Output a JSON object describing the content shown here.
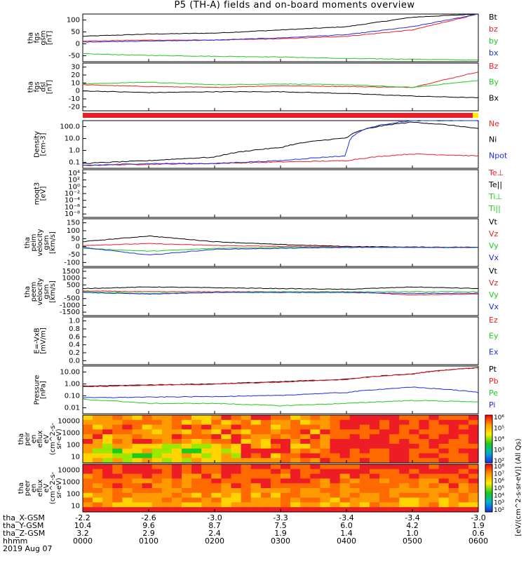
{
  "title": "P5 (TH-A) fields and on-board moments overview",
  "colors": {
    "black": "#000000",
    "red": "#ee1c24",
    "green": "#1ccc1c",
    "blue": "#1e2be8"
  },
  "panels": [
    {
      "id": "fgs-gsm",
      "ylabel": [
        "tha",
        "fgs",
        "gsm",
        "[nT]"
      ],
      "yticks": [
        "100",
        "50",
        "0",
        "-50"
      ],
      "legend": [
        {
          "text": "Bt",
          "color": "#000000"
        },
        {
          "text": "bz",
          "color": "#ee1c24"
        },
        {
          "text": "by",
          "color": "#1ccc1c"
        },
        {
          "text": "bx",
          "color": "#1e2be8"
        }
      ]
    },
    {
      "id": "fgs-dsl",
      "ylabel": [
        "tha",
        "fgs",
        "dsl",
        "[nT]"
      ],
      "yticks": [
        "30",
        "20",
        "10",
        "0",
        "-10",
        "-20"
      ],
      "legend": [
        {
          "text": "Bz",
          "color": "#ee1c24"
        },
        {
          "text": "By",
          "color": "#1ccc1c"
        },
        {
          "text": "Bx",
          "color": "#000000"
        }
      ]
    },
    {
      "id": "density",
      "ylabel": [
        "Density",
        "[cm-3]"
      ],
      "yticks": [
        "100.0",
        "10.0",
        "1.0",
        "0.1"
      ],
      "legend": [
        {
          "text": "Ne",
          "color": "#ee1c24"
        },
        {
          "text": "Ni",
          "color": "#000000"
        },
        {
          "text": "Npot",
          "color": "#1e2be8"
        }
      ]
    },
    {
      "id": "temperature",
      "ylabel": [
        "moqt3",
        "[eV]"
      ],
      "yticks": [
        "10⁴",
        "10²",
        "10⁰",
        "10⁻²",
        "10⁻⁴",
        "10⁻⁶",
        "10⁻⁸"
      ],
      "legend": [
        {
          "text": "Te⊥",
          "color": "#ee1c24"
        },
        {
          "text": "Te||",
          "color": "#000000"
        },
        {
          "text": "Ti⊥",
          "color": "#1ccc1c"
        },
        {
          "text": "Ti||",
          "color": "#1ccc1c"
        }
      ]
    },
    {
      "id": "peim-velocity",
      "ylabel": [
        "tha",
        "peim",
        "velocity",
        "gsm",
        "[km/s]"
      ],
      "yticks": [
        "150",
        "100",
        "50",
        "0",
        "-50",
        "-100"
      ],
      "legend": [
        {
          "text": "Vt",
          "color": "#000000"
        },
        {
          "text": "Vz",
          "color": "#ee1c24"
        },
        {
          "text": "Vy",
          "color": "#1ccc1c"
        },
        {
          "text": "Vx",
          "color": "#1e2be8"
        }
      ]
    },
    {
      "id": "peem-velocity",
      "ylabel": [
        "tha",
        "peem",
        "velocity",
        "gsm",
        "[km/s]"
      ],
      "yticks": [
        "1500",
        "1000",
        "500",
        "0",
        "-500",
        "-1000",
        "-1500"
      ],
      "legend": [
        {
          "text": "Vt",
          "color": "#000000"
        },
        {
          "text": "Vz",
          "color": "#ee1c24"
        },
        {
          "text": "Vy",
          "color": "#1ccc1c"
        },
        {
          "text": "Vx",
          "color": "#1e2be8"
        }
      ]
    },
    {
      "id": "efield",
      "ylabel": [
        "E=-VxB",
        "[mV/m]"
      ],
      "yticks": [
        "1.0",
        "0.8",
        "0.6",
        "0.4",
        "0.2",
        "0.0"
      ],
      "legend": [
        {
          "text": "Ez",
          "color": "#ee1c24"
        },
        {
          "text": "Ey",
          "color": "#1ccc1c"
        },
        {
          "text": "Ex",
          "color": "#1e2be8"
        }
      ]
    },
    {
      "id": "pressure",
      "ylabel": [
        "Pressure",
        "[nPa]"
      ],
      "yticks": [
        "10.00",
        "1.00",
        "0.10",
        "0.01"
      ],
      "legend": [
        {
          "text": "Pt",
          "color": "#000000"
        },
        {
          "text": "Pb",
          "color": "#ee1c24"
        },
        {
          "text": "Pe",
          "color": "#1ccc1c"
        },
        {
          "text": "Pi",
          "color": "#1e2be8"
        }
      ]
    },
    {
      "id": "peir-spectrogram",
      "ylabel": [
        "tha",
        "peir",
        "en",
        "eflux",
        "eV",
        "(cm^2-s-",
        "sr-eV)"
      ],
      "yticks": [
        "10000",
        "1000",
        "100",
        "10"
      ],
      "colorbar_ticks": [
        "10⁶",
        "10⁵",
        "10⁴",
        "10³",
        "10²"
      ]
    },
    {
      "id": "peer-spectrogram",
      "ylabel": [
        "tha",
        "peer",
        "en",
        "eflux",
        "eV",
        "(cm^2-s-",
        "sr-eV)"
      ],
      "yticks": [
        "10000",
        "1000",
        "100",
        "10"
      ],
      "colorbar_ticks": [
        "10⁸",
        "10⁷",
        "10⁶",
        "10⁵",
        "10⁴",
        "10³",
        "10²"
      ]
    }
  ],
  "colorbar_label": "[eV/(cm^2-s-sr-eV)] (All Qs)",
  "ephemeris": {
    "row_labels": [
      "tha_X-GSM",
      "tha_Y-GSM",
      "tha_Z-GSM",
      "hhmm",
      "2019 Aug 07"
    ],
    "columns": [
      [
        "-2.2",
        "10.4",
        "3.2",
        "0000"
      ],
      [
        "-2.6",
        "9.6",
        "2.9",
        "0100"
      ],
      [
        "-3.0",
        "8.7",
        "2.4",
        "0200"
      ],
      [
        "-3.3",
        "7.5",
        "1.9",
        "0300"
      ],
      [
        "-3.4",
        "6.0",
        "1.4",
        "0400"
      ],
      [
        "-3.4",
        "4.2",
        "1.0",
        "0500"
      ],
      [
        "-3.0",
        "1.9",
        "0.6",
        "0600"
      ]
    ]
  },
  "chart_data": [
    {
      "type": "line",
      "panel": "fgs-gsm",
      "ylim": [
        -50,
        100
      ],
      "x": [
        "0000",
        "0100",
        "0200",
        "0300",
        "0400",
        "0500",
        "0600"
      ],
      "series": [
        {
          "name": "Bt",
          "values": [
            30,
            37,
            40,
            50,
            60,
            90,
            100
          ]
        },
        {
          "name": "bz",
          "values": [
            15,
            18,
            18,
            22,
            30,
            50,
            100
          ]
        },
        {
          "name": "by",
          "values": [
            -25,
            -30,
            -33,
            -35,
            -40,
            -42,
            -45
          ]
        },
        {
          "name": "bx",
          "values": [
            12,
            15,
            18,
            25,
            35,
            60,
            100
          ]
        }
      ]
    },
    {
      "type": "line",
      "panel": "fgs-dsl",
      "ylim": [
        -25,
        30
      ],
      "x": [
        "0000",
        "0100",
        "0200",
        "0300",
        "0400",
        "0500",
        "0600"
      ],
      "series": [
        {
          "name": "Bz",
          "values": [
            5,
            3,
            2,
            4,
            3,
            2,
            20
          ]
        },
        {
          "name": "By",
          "values": [
            6,
            8,
            5,
            6,
            5,
            2,
            10
          ]
        },
        {
          "name": "Bx",
          "values": [
            -2,
            -4,
            -3,
            -3,
            -5,
            -8,
            -10
          ]
        }
      ]
    },
    {
      "type": "line",
      "panel": "density",
      "ylog": true,
      "ylim": [
        0.1,
        100
      ],
      "x": [
        "0000",
        "0100",
        "0200",
        "0300",
        "0400",
        "0500",
        "0600"
      ],
      "series": [
        {
          "name": "Ne",
          "values": [
            0.15,
            0.18,
            0.2,
            0.25,
            0.3,
            0.8,
            0.6
          ]
        },
        {
          "name": "Ni",
          "values": [
            0.2,
            0.3,
            0.5,
            2,
            8,
            80,
            30
          ]
        },
        {
          "name": "Npot",
          "values": [
            0.15,
            0.2,
            0.2,
            0.3,
            0.6,
            100,
            100
          ]
        }
      ]
    },
    {
      "type": "line",
      "panel": "peim-velocity",
      "ylim": [
        -100,
        150
      ],
      "x": [
        "0000",
        "0100",
        "0200",
        "0300",
        "0400",
        "0500",
        "0600"
      ],
      "series": [
        {
          "name": "Vt",
          "values": [
            30,
            60,
            30,
            15,
            5,
            2,
            1
          ]
        },
        {
          "name": "Vz",
          "values": [
            10,
            20,
            10,
            5,
            2,
            1,
            0
          ]
        },
        {
          "name": "Vy",
          "values": [
            -5,
            -20,
            -5,
            0,
            0,
            0,
            0
          ]
        },
        {
          "name": "Vx",
          "values": [
            0,
            -40,
            -10,
            -5,
            0,
            0,
            0
          ]
        }
      ]
    },
    {
      "type": "line",
      "panel": "peem-velocity",
      "ylim": [
        -1500,
        1500
      ],
      "x": [
        "0000",
        "0100",
        "0200",
        "0300",
        "0400",
        "0500",
        "0600"
      ],
      "series": [
        {
          "name": "Vt",
          "values": [
            200,
            300,
            250,
            200,
            150,
            300,
            200
          ]
        },
        {
          "name": "Vz",
          "values": [
            50,
            0,
            0,
            0,
            0,
            -200,
            -150
          ]
        },
        {
          "name": "Vy",
          "values": [
            0,
            -100,
            -50,
            0,
            0,
            0,
            0
          ]
        },
        {
          "name": "Vx",
          "values": [
            -50,
            -150,
            -50,
            -50,
            -50,
            -100,
            -100
          ]
        }
      ]
    },
    {
      "type": "line",
      "panel": "pressure",
      "ylog": true,
      "ylim": [
        0.005,
        20
      ],
      "x": [
        "0000",
        "0100",
        "0200",
        "0300",
        "0400",
        "0500",
        "0600"
      ],
      "series": [
        {
          "name": "Pt",
          "values": [
            0.6,
            0.75,
            0.9,
            1.3,
            2,
            5,
            15
          ]
        },
        {
          "name": "Pb",
          "values": [
            0.55,
            0.7,
            0.85,
            1.2,
            1.9,
            5,
            15
          ]
        },
        {
          "name": "Pe",
          "values": [
            0.06,
            0.03,
            0.03,
            0.02,
            0.03,
            0.05,
            0.04
          ]
        },
        {
          "name": "Pi",
          "values": [
            0.08,
            0.09,
            0.1,
            0.12,
            0.2,
            0.5,
            0.2
          ]
        }
      ]
    },
    {
      "type": "heatmap",
      "panel": "peir-spectrogram",
      "ylog": true,
      "ylim": [
        5,
        30000
      ]
    },
    {
      "type": "heatmap",
      "panel": "peer-spectrogram",
      "ylog": true,
      "ylim": [
        5,
        30000
      ]
    }
  ]
}
